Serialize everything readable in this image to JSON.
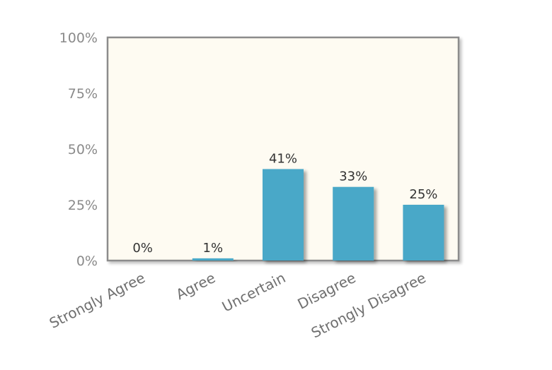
{
  "chart_data": {
    "type": "bar",
    "categories": [
      "Strongly Agree",
      "Agree",
      "Uncertain",
      "Disagree",
      "Strongly Disagree"
    ],
    "values": [
      0,
      1,
      41,
      33,
      25
    ],
    "data_labels": [
      "0%",
      "1%",
      "41%",
      "33%",
      "25%"
    ],
    "ylim": [
      0,
      100
    ],
    "yticks": [
      0,
      25,
      50,
      75,
      100
    ],
    "ytick_labels": [
      "0%",
      "25%",
      "50%",
      "75%",
      "100%"
    ],
    "title": "",
    "xlabel": "",
    "ylabel": "",
    "grid": false,
    "legend": "none",
    "colors": {
      "bar": "#48a8c8",
      "plot_background": "#fefbf2",
      "plot_border": "#8c8c8c",
      "bar_shadow": "#c8c8c8"
    }
  }
}
